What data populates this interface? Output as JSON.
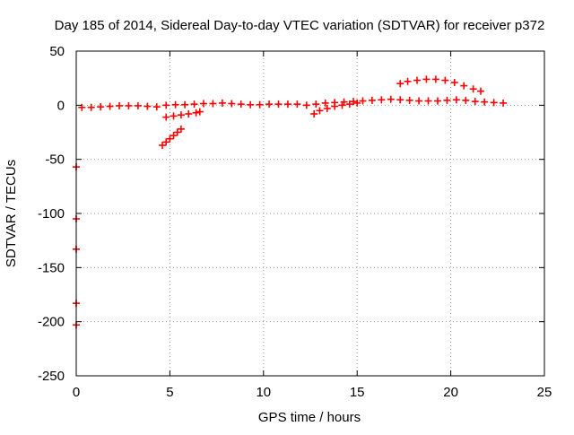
{
  "chart_data": {
    "type": "scatter",
    "title": "Day 185 of 2014, Sidereal Day-to-day VTEC variation (SDTVAR) for receiver p372",
    "xlabel": "GPS time / hours",
    "ylabel": "SDTVAR / TECUs",
    "xlim": [
      0,
      25
    ],
    "ylim": [
      -250,
      50
    ],
    "x_ticks": [
      0,
      5,
      10,
      15,
      20,
      25
    ],
    "y_ticks": [
      -250,
      -200,
      -150,
      -100,
      -50,
      0,
      50
    ],
    "grid": true,
    "legend": "none",
    "series_color": "#ff0000",
    "series": [
      {
        "values": [
          [
            0.3,
            -2
          ],
          [
            0.8,
            -2
          ],
          [
            1.3,
            -1.5
          ],
          [
            1.8,
            -1
          ],
          [
            2.3,
            -0.5
          ],
          [
            2.8,
            -0.5
          ],
          [
            3.3,
            -0.5
          ],
          [
            3.8,
            -1
          ],
          [
            4.3,
            -1.5
          ],
          [
            4.8,
            0
          ],
          [
            5.3,
            0.5
          ],
          [
            5.8,
            0.5
          ],
          [
            6.3,
            1
          ],
          [
            6.8,
            1.5
          ],
          [
            7.3,
            1.5
          ],
          [
            7.8,
            2
          ],
          [
            8.3,
            1.5
          ],
          [
            8.8,
            1
          ],
          [
            9.3,
            0.5
          ],
          [
            9.8,
            0.5
          ],
          [
            10.3,
            1
          ],
          [
            10.8,
            1
          ],
          [
            11.3,
            1
          ],
          [
            11.8,
            1
          ],
          [
            12.3,
            0
          ],
          [
            12.8,
            1
          ],
          [
            13.3,
            2
          ],
          [
            13.8,
            2.5
          ],
          [
            14.3,
            3
          ],
          [
            14.8,
            3.5
          ],
          [
            15.3,
            4
          ],
          [
            15.8,
            4.5
          ],
          [
            16.3,
            5
          ],
          [
            16.8,
            5.5
          ],
          [
            17.3,
            5
          ],
          [
            17.8,
            4.5
          ],
          [
            18.3,
            4
          ],
          [
            18.8,
            4
          ],
          [
            19.3,
            4
          ],
          [
            19.8,
            4.5
          ],
          [
            20.3,
            5
          ],
          [
            20.8,
            4.5
          ],
          [
            21.3,
            3.5
          ],
          [
            21.8,
            3
          ],
          [
            22.3,
            2.5
          ],
          [
            22.8,
            2
          ],
          [
            12.7,
            -8
          ],
          [
            13.0,
            -5
          ],
          [
            13.4,
            -3
          ],
          [
            13.8,
            -1
          ],
          [
            14.2,
            0
          ],
          [
            14.6,
            1
          ],
          [
            15.0,
            2
          ],
          [
            4.6,
            -37
          ],
          [
            4.8,
            -34
          ],
          [
            5.0,
            -31
          ],
          [
            5.2,
            -28
          ],
          [
            5.4,
            -25
          ],
          [
            5.6,
            -22
          ],
          [
            4.8,
            -11
          ],
          [
            5.2,
            -10
          ],
          [
            5.6,
            -9
          ],
          [
            6.0,
            -8
          ],
          [
            6.4,
            -7
          ],
          [
            6.6,
            -6
          ],
          [
            17.3,
            20
          ],
          [
            17.7,
            22
          ],
          [
            18.2,
            23
          ],
          [
            18.7,
            24
          ],
          [
            19.2,
            24
          ],
          [
            19.7,
            23
          ],
          [
            20.2,
            21
          ],
          [
            20.7,
            18
          ],
          [
            21.2,
            15
          ],
          [
            21.6,
            13
          ],
          [
            0.0,
            -57
          ],
          [
            0.0,
            -105
          ],
          [
            0.0,
            -133
          ],
          [
            0.0,
            -183
          ],
          [
            0.0,
            -203
          ]
        ]
      }
    ]
  }
}
